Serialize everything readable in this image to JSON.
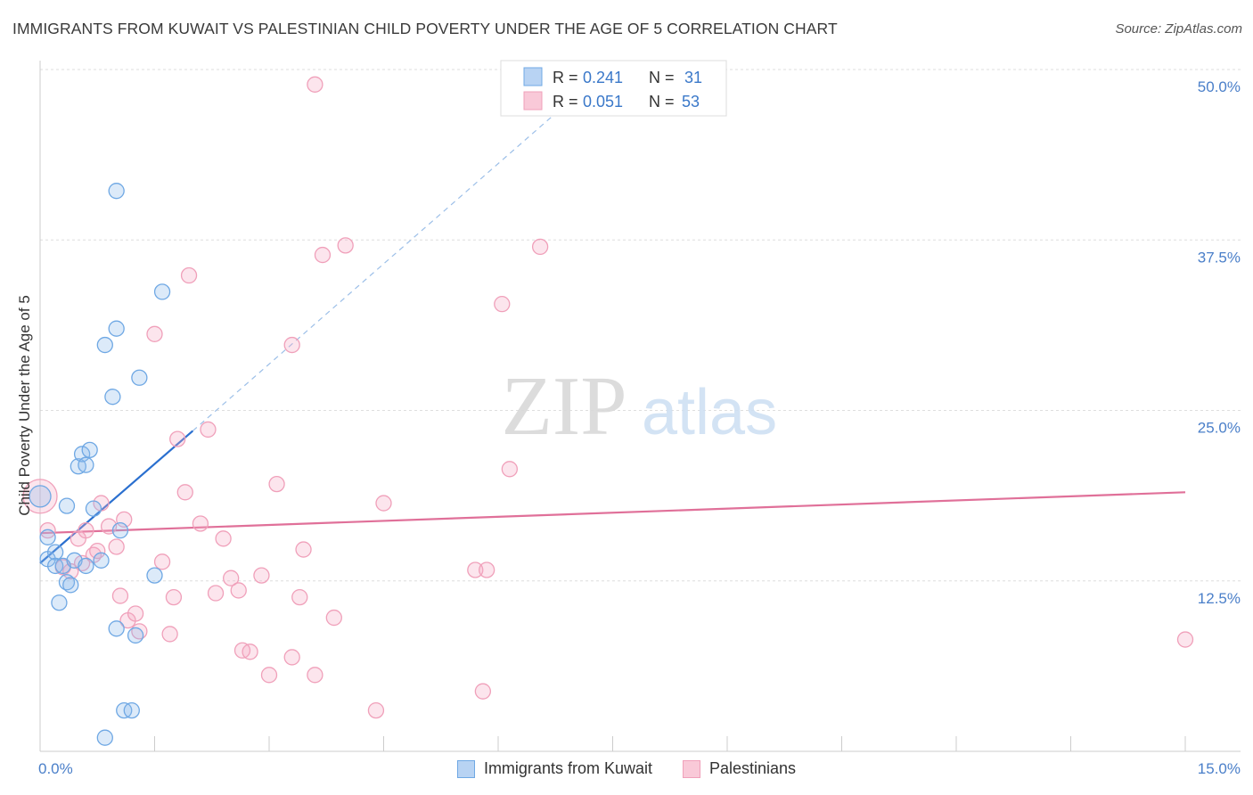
{
  "header": {
    "title": "IMMIGRANTS FROM KUWAIT VS PALESTINIAN CHILD POVERTY UNDER THE AGE OF 5 CORRELATION CHART",
    "source": "Source: ZipAtlas.com"
  },
  "watermark": {
    "zip": "ZIP",
    "atlas": "atlas"
  },
  "legend": {
    "rows": [
      {
        "r_label": "R =",
        "r_value": "0.241",
        "n_label": "N =",
        "n_value": "31"
      },
      {
        "r_label": "R =",
        "r_value": "0.051",
        "n_label": "N =",
        "n_value": "53"
      }
    ]
  },
  "chart_data": {
    "type": "scatter",
    "ylabel": "Child Poverty Under the Age of 5",
    "xlim": [
      0,
      15
    ],
    "ylim": [
      0,
      50
    ],
    "x_tick_labels": [
      "0.0%",
      "15.0%"
    ],
    "y_ticks": [
      {
        "value": 12.5,
        "label": "12.5%"
      },
      {
        "value": 25.0,
        "label": "25.0%"
      },
      {
        "value": 37.5,
        "label": "37.5%"
      },
      {
        "value": 50.0,
        "label": "50.0%"
      }
    ],
    "colors": {
      "kuwait": "#6fa8e4",
      "kuwait_line": "#2a6fcf",
      "palestinians": "#f0a0ba",
      "palestinians_line": "#e07099",
      "tick_text": "#4a7fc9"
    },
    "series": [
      {
        "name": "Immigrants from Kuwait",
        "trend": {
          "x": [
            0.0,
            2.0
          ],
          "y": [
            13.8,
            23.5
          ],
          "extended_to": [
            7.0,
            48.0
          ]
        },
        "points": [
          [
            0.0,
            18.7
          ],
          [
            0.1,
            15.7
          ],
          [
            0.1,
            14.1
          ],
          [
            0.2,
            14.6
          ],
          [
            0.2,
            13.6
          ],
          [
            0.25,
            10.9
          ],
          [
            0.3,
            13.6
          ],
          [
            0.35,
            12.4
          ],
          [
            0.35,
            18.0
          ],
          [
            0.4,
            12.2
          ],
          [
            0.45,
            14.0
          ],
          [
            0.5,
            20.9
          ],
          [
            0.55,
            21.8
          ],
          [
            0.6,
            21.0
          ],
          [
            0.6,
            13.6
          ],
          [
            0.65,
            22.1
          ],
          [
            0.7,
            17.8
          ],
          [
            0.8,
            14.0
          ],
          [
            0.85,
            1.0
          ],
          [
            0.85,
            29.8
          ],
          [
            0.95,
            26.0
          ],
          [
            1.0,
            31.0
          ],
          [
            1.0,
            41.1
          ],
          [
            1.0,
            9.0
          ],
          [
            1.05,
            16.2
          ],
          [
            1.1,
            3.0
          ],
          [
            1.2,
            3.0
          ],
          [
            1.25,
            8.5
          ],
          [
            1.3,
            27.4
          ],
          [
            1.5,
            12.9
          ],
          [
            1.6,
            33.7
          ]
        ]
      },
      {
        "name": "Palestinians",
        "trend": {
          "x": [
            0.0,
            15.0
          ],
          "y": [
            16.0,
            19.0
          ]
        },
        "points": [
          [
            0.0,
            18.7
          ],
          [
            0.1,
            16.2
          ],
          [
            0.3,
            13.5
          ],
          [
            0.4,
            13.2
          ],
          [
            0.5,
            15.6
          ],
          [
            0.55,
            13.8
          ],
          [
            0.6,
            16.2
          ],
          [
            0.7,
            14.4
          ],
          [
            0.75,
            14.7
          ],
          [
            0.8,
            18.2
          ],
          [
            0.9,
            16.5
          ],
          [
            1.0,
            15.0
          ],
          [
            1.05,
            11.4
          ],
          [
            1.1,
            17.0
          ],
          [
            1.15,
            9.6
          ],
          [
            1.25,
            10.1
          ],
          [
            1.3,
            8.8
          ],
          [
            1.5,
            30.6
          ],
          [
            1.6,
            13.9
          ],
          [
            1.7,
            8.6
          ],
          [
            1.75,
            11.3
          ],
          [
            1.8,
            22.9
          ],
          [
            1.9,
            19.0
          ],
          [
            1.95,
            34.9
          ],
          [
            2.1,
            16.7
          ],
          [
            2.2,
            23.6
          ],
          [
            2.3,
            11.6
          ],
          [
            2.4,
            15.6
          ],
          [
            2.5,
            12.7
          ],
          [
            2.6,
            11.8
          ],
          [
            2.65,
            7.4
          ],
          [
            2.75,
            7.3
          ],
          [
            2.9,
            12.9
          ],
          [
            3.0,
            5.6
          ],
          [
            3.1,
            19.6
          ],
          [
            3.3,
            6.9
          ],
          [
            3.3,
            29.8
          ],
          [
            3.4,
            11.3
          ],
          [
            3.45,
            14.8
          ],
          [
            3.6,
            48.9
          ],
          [
            3.6,
            5.6
          ],
          [
            3.7,
            36.4
          ],
          [
            3.85,
            9.8
          ],
          [
            4.0,
            37.1
          ],
          [
            4.4,
            3.0
          ],
          [
            4.5,
            18.2
          ],
          [
            5.7,
            13.3
          ],
          [
            5.8,
            4.4
          ],
          [
            5.85,
            13.3
          ],
          [
            6.05,
            32.8
          ],
          [
            6.15,
            20.7
          ],
          [
            6.55,
            37.0
          ],
          [
            15.0,
            8.2
          ]
        ]
      }
    ]
  }
}
